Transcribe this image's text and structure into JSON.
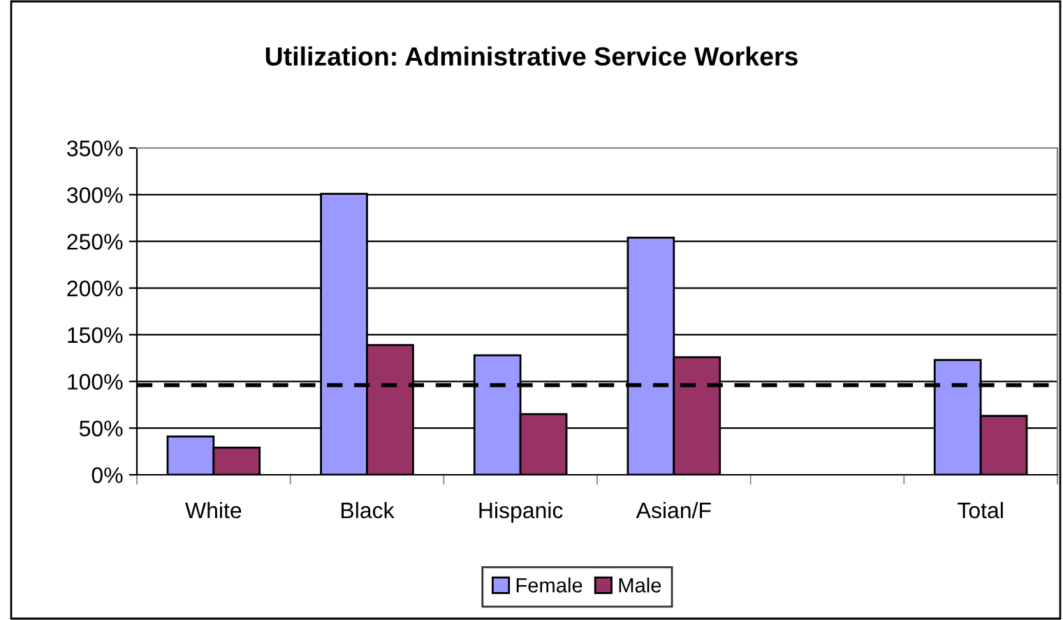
{
  "chart_data": {
    "type": "bar",
    "title": "Utilization: Administrative Service Workers",
    "categories": [
      "White",
      "Black",
      "Hispanic",
      "Asian/F",
      null,
      "Total"
    ],
    "series": [
      {
        "name": "Female",
        "color": "#9999ff",
        "values": [
          41,
          301,
          128,
          254,
          null,
          123
        ]
      },
      {
        "name": "Male",
        "color": "#993366",
        "values": [
          29,
          139,
          65,
          126,
          null,
          63
        ]
      }
    ],
    "ylim": [
      0,
      350
    ],
    "yticks": [
      {
        "value": 0,
        "label": "0%"
      },
      {
        "value": 50,
        "label": "50%"
      },
      {
        "value": 100,
        "label": "100%"
      },
      {
        "value": 150,
        "label": "150%"
      },
      {
        "value": 200,
        "label": "200%"
      },
      {
        "value": 250,
        "label": "250%"
      },
      {
        "value": 300,
        "label": "300%"
      },
      {
        "value": 350,
        "label": "350%"
      }
    ],
    "ref_lines": [
      {
        "axis": "y",
        "value": 96,
        "color": "#000000",
        "line_style": "dashed"
      }
    ],
    "grid": "y",
    "legend": "bottom"
  }
}
